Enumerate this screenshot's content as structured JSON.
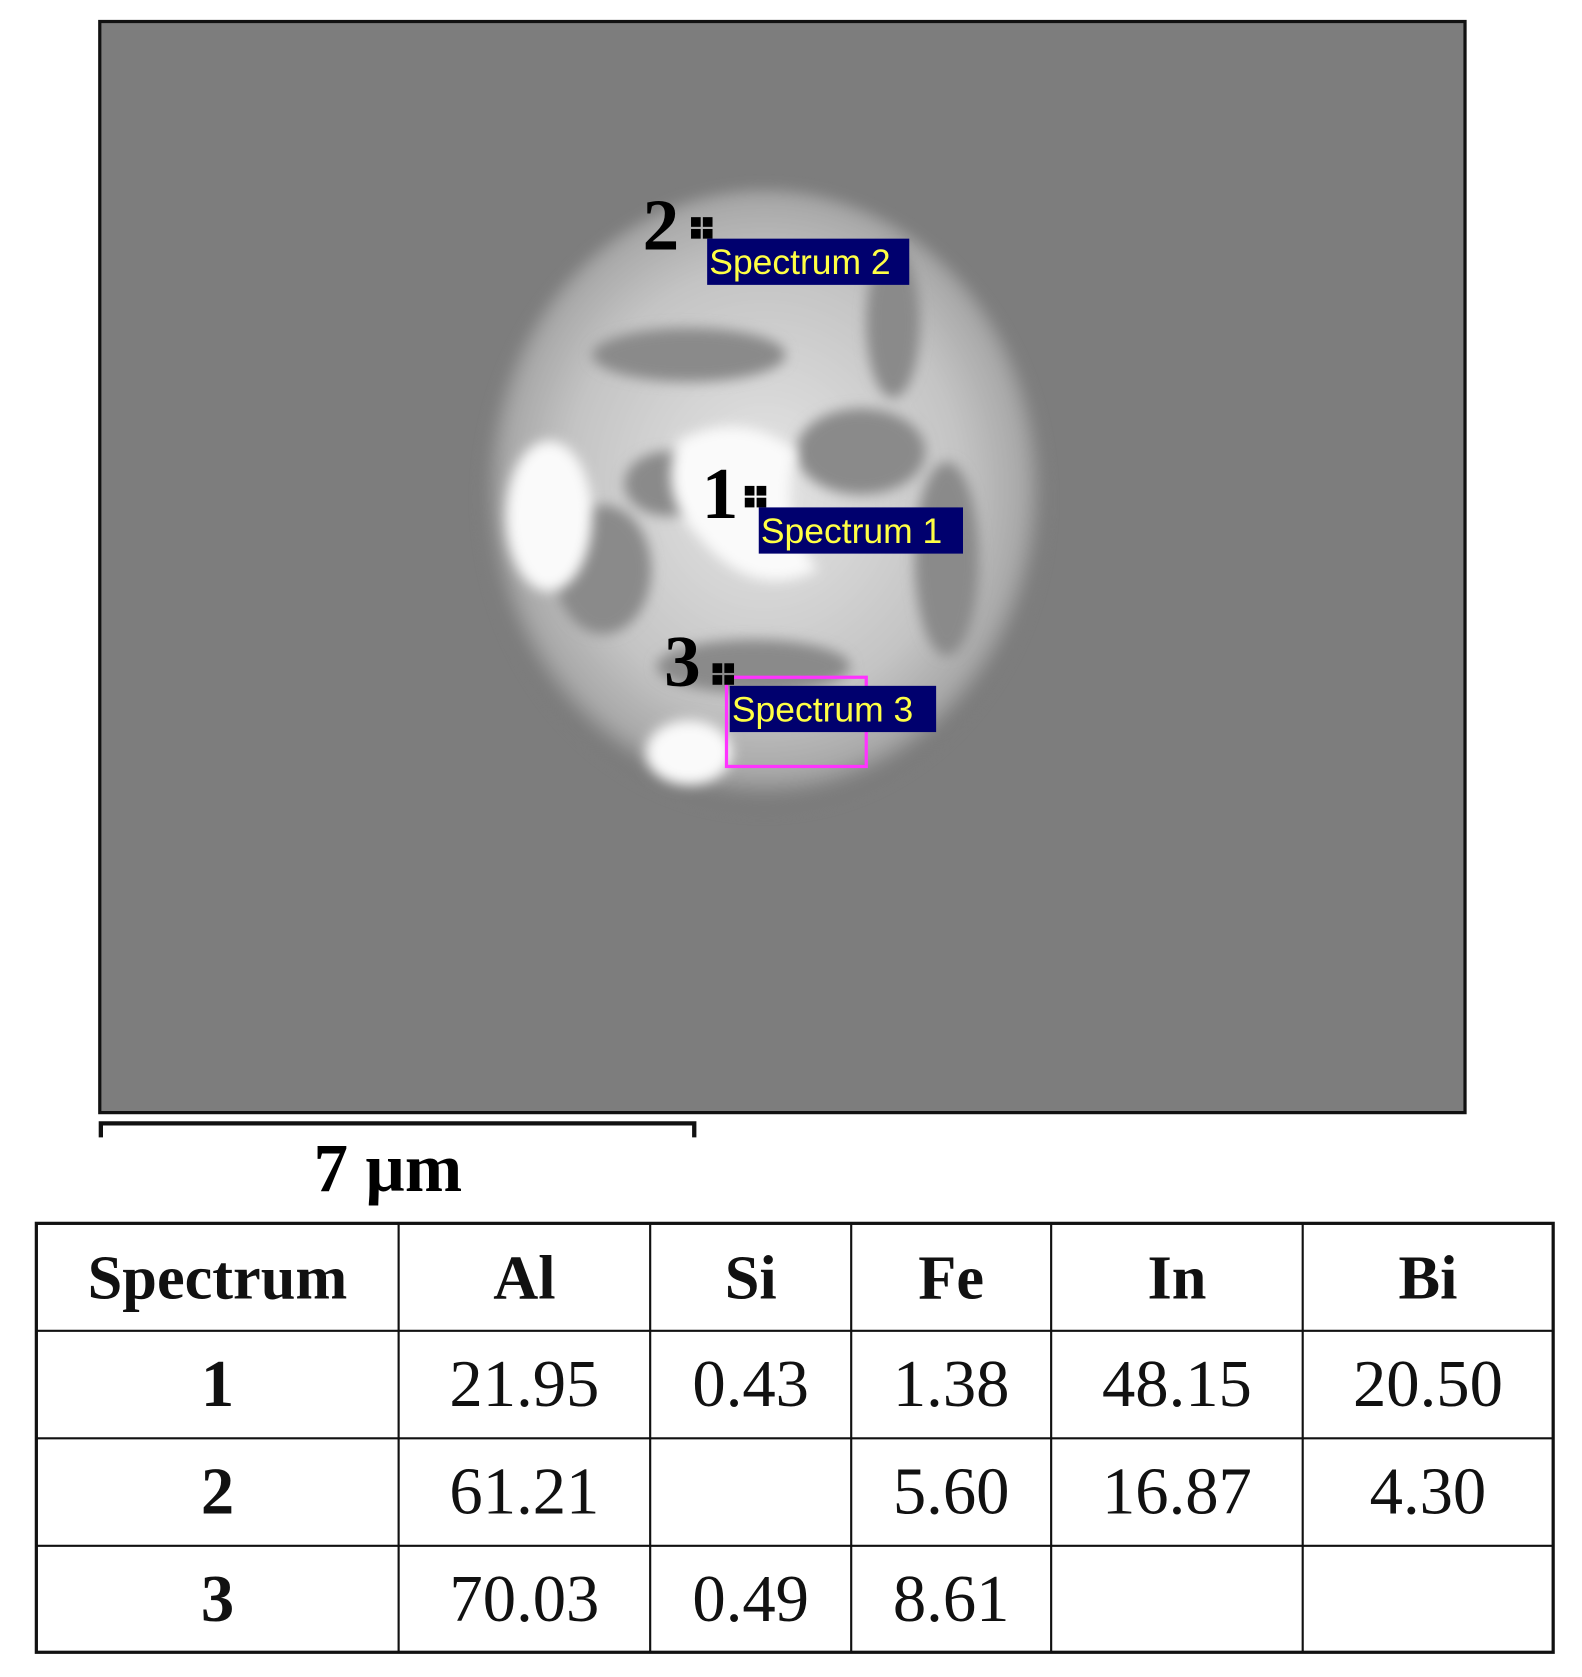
{
  "image": {
    "markers": [
      {
        "number": "1",
        "label": "Spectrum 1"
      },
      {
        "number": "2",
        "label": "Spectrum 2"
      },
      {
        "number": "3",
        "label": "Spectrum 3"
      }
    ],
    "scale_bar": "7 µm"
  },
  "table": {
    "header": [
      "Spectrum",
      "Al",
      "Si",
      "Fe",
      "In",
      "Bi"
    ],
    "rows": [
      [
        "1",
        "21.95",
        "0.43",
        "1.38",
        "48.15",
        "20.50"
      ],
      [
        "2",
        "61.21",
        null,
        "5.60",
        "16.87",
        "4.30"
      ],
      [
        "3",
        "70.03",
        "0.49",
        "8.61",
        null,
        null
      ]
    ]
  }
}
